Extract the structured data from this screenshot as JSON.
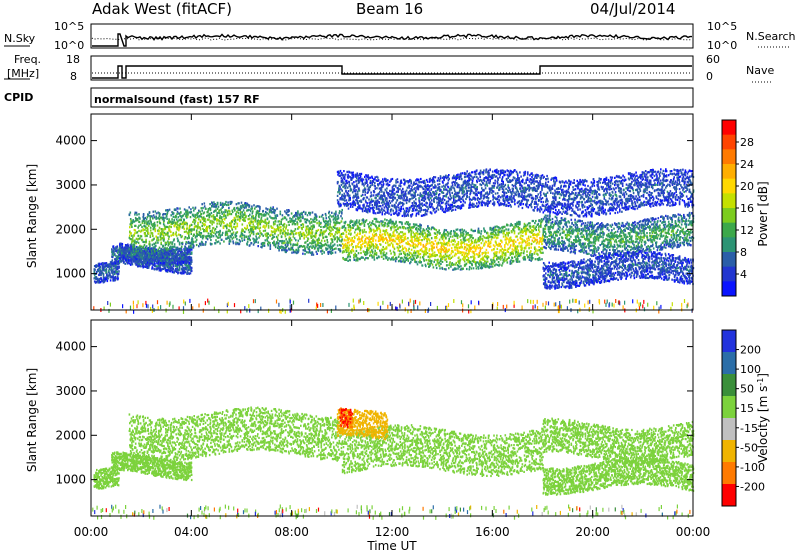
{
  "header": {
    "radar": "Adak West (fitACF)",
    "beam": "Beam 16",
    "date": "04/Jul/2014"
  },
  "panels": {
    "nsky_label": "N.Sky",
    "nsky_ticks": [
      "10^5",
      "10^0"
    ],
    "nsearch_label": "N.Search",
    "nsearch_ticks": [
      "10^5",
      "10^0"
    ],
    "freq_label_1": "Freq.",
    "freq_label_2": "[MHz]",
    "freq_ticks": [
      "18",
      "8"
    ],
    "nave_label": "Nave",
    "nave_ticks": [
      "60",
      "0"
    ],
    "cpid_label": "CPID",
    "cpid_text": "normalsound (fast) 157 RF"
  },
  "power_colorbar": {
    "label": "Power [dB]",
    "ticks": [
      "28",
      "24",
      "20",
      "16",
      "12",
      "8",
      "4"
    ],
    "colors": [
      "#ff0000",
      "#ff4400",
      "#ff7a00",
      "#ffae00",
      "#ffd800",
      "#c4e000",
      "#7ccc1e",
      "#3ca84a",
      "#2c9474",
      "#2a5ea8",
      "#2236d0",
      "#0a14ff"
    ]
  },
  "velocity_colorbar": {
    "label": "Velocity [m s",
    "label_sup": "-1",
    "label_end": "]",
    "ticks": [
      "200",
      "100",
      "50",
      "15",
      "-15",
      "-50",
      "-100",
      "-200"
    ],
    "colors": [
      "#2233dd",
      "#2b6ea8",
      "#3a8f3a",
      "#7cd23c",
      "#c0c0c0",
      "#f0b400",
      "#ff7a00",
      "#ff0000"
    ]
  },
  "axes": {
    "ylabel": "Slant Range [km]",
    "xlabel": "Time UT",
    "y_ticks": [
      "4000",
      "3000",
      "2000",
      "1000"
    ],
    "x_ticks": [
      "00:00",
      "04:00",
      "08:00",
      "12:00",
      "16:00",
      "20:00",
      "00:00"
    ]
  },
  "chart_data": [
    {
      "type": "heatmap",
      "title": "",
      "xlabel": "",
      "ylabel": "Slant Range [km]",
      "zlabel": "Power [dB]",
      "xlim": [
        0,
        24
      ],
      "ylim": [
        180,
        4600
      ],
      "zlim": [
        0,
        30
      ],
      "bands": [
        {
          "x_start": 0.1,
          "x_end": 1.1,
          "range": 1000,
          "width": 220,
          "value": 6
        },
        {
          "x_start": 0.8,
          "x_end": 4.0,
          "range": 1330,
          "width": 200,
          "value": 7
        },
        {
          "x_start": 1.1,
          "x_end": 4.0,
          "range": 1520,
          "width": 180,
          "value": 6
        },
        {
          "x_start": 1.5,
          "x_end": 10.0,
          "range": 2050,
          "width": 480,
          "value": 15
        },
        {
          "x_start": 10.0,
          "x_end": 18.0,
          "range": 1680,
          "width": 460,
          "value": 20
        },
        {
          "x_start": 18.0,
          "x_end": 24.0,
          "range": 1900,
          "width": 380,
          "value": 11
        },
        {
          "x_start": 9.8,
          "x_end": 24.0,
          "range": 2850,
          "width": 420,
          "value": 5
        },
        {
          "x_start": 18.0,
          "x_end": 24.0,
          "range": 1100,
          "width": 300,
          "value": 5
        }
      ]
    },
    {
      "type": "heatmap",
      "title": "",
      "xlabel": "Time UT",
      "ylabel": "Slant Range [km]",
      "zlabel": "Velocity [m s-1]",
      "xlim": [
        0,
        24
      ],
      "ylim": [
        180,
        4600
      ],
      "zlim": [
        -200,
        200
      ],
      "bands": [
        {
          "x_start": 0.1,
          "x_end": 1.1,
          "range": 1000,
          "width": 220,
          "value": 0
        },
        {
          "x_start": 0.8,
          "x_end": 4.0,
          "range": 1330,
          "width": 200,
          "value": 0
        },
        {
          "x_start": 1.5,
          "x_end": 10.0,
          "range": 2050,
          "width": 480,
          "value": 0
        },
        {
          "x_start": 10.0,
          "x_end": 18.0,
          "range": 1680,
          "width": 460,
          "value": -5
        },
        {
          "x_start": 18.0,
          "x_end": 24.0,
          "range": 1900,
          "width": 380,
          "value": 0
        },
        {
          "x_start": 9.8,
          "x_end": 11.8,
          "range": 2200,
          "width": 300,
          "value": -60
        },
        {
          "x_start": 9.9,
          "x_end": 10.4,
          "range": 2350,
          "width": 200,
          "value": -200
        },
        {
          "x_start": 18.0,
          "x_end": 24.0,
          "range": 1100,
          "width": 300,
          "value": 0
        }
      ]
    }
  ]
}
